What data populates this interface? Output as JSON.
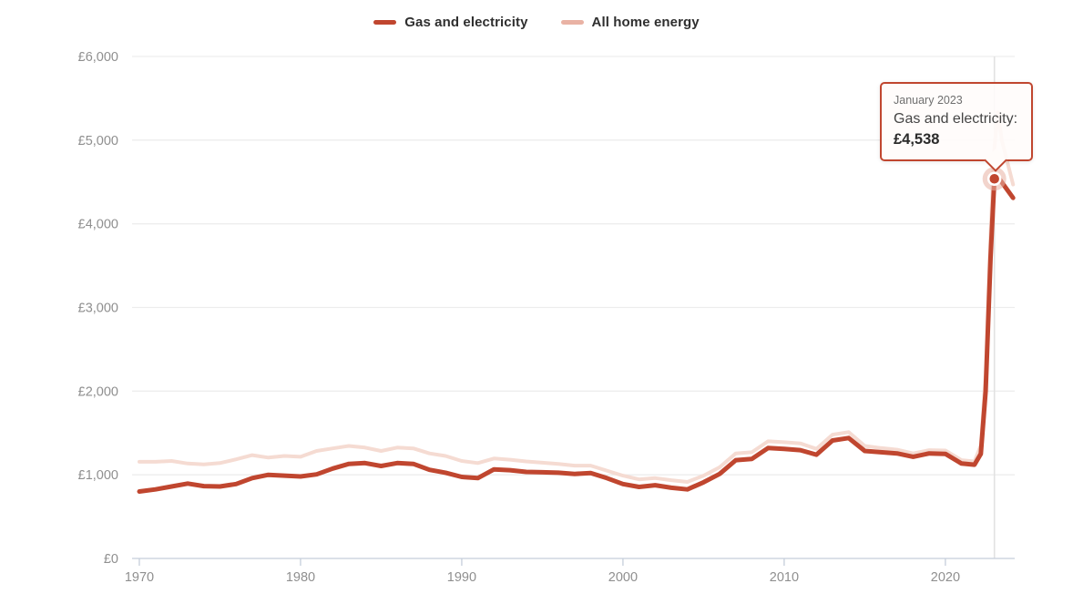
{
  "legend": {
    "items": [
      {
        "label": "Gas and electricity",
        "color": "#c0462f"
      },
      {
        "label": "All home energy",
        "color": "#e9b2a4"
      }
    ]
  },
  "tooltip": {
    "date": "January 2023",
    "series_label": "Gas and electricity:",
    "value": "£4,538"
  },
  "colors": {
    "gas_line": "#c0462f",
    "all_home_line": "#f5dbd2",
    "grid": "#ededed",
    "axis": "#c5cedb",
    "tick_label": "#8f8f8f",
    "crosshair": "#e2e2e2",
    "marker_fill": "#c0462f",
    "marker_ring": "#ffffff",
    "marker_halo": "rgba(231,176,163,0.55)"
  },
  "chart_data": {
    "type": "line",
    "title": "",
    "xlabel": "",
    "ylabel": "",
    "xlim": [
      1969.55,
      2024.3
    ],
    "ylim": [
      0,
      6000
    ],
    "grid": "horizontal",
    "legend_position": "top-center",
    "x_ticks": [
      {
        "value": 1970,
        "label": "1970"
      },
      {
        "value": 1980,
        "label": "1980"
      },
      {
        "value": 1990,
        "label": "1990"
      },
      {
        "value": 2000,
        "label": "2000"
      },
      {
        "value": 2010,
        "label": "2010"
      },
      {
        "value": 2020,
        "label": "2020"
      }
    ],
    "y_ticks": [
      {
        "value": 0,
        "label": "£0"
      },
      {
        "value": 1000,
        "label": "£1,000"
      },
      {
        "value": 2000,
        "label": "£2,000"
      },
      {
        "value": 3000,
        "label": "£3,000"
      },
      {
        "value": 4000,
        "label": "£4,000"
      },
      {
        "value": 5000,
        "label": "£5,000"
      },
      {
        "value": 6000,
        "label": "£6,000"
      }
    ],
    "series": [
      {
        "name": "All home energy",
        "line_width": 4,
        "points": [
          [
            1970,
            1155
          ],
          [
            1971,
            1155
          ],
          [
            1972,
            1165
          ],
          [
            1973,
            1135
          ],
          [
            1974,
            1125
          ],
          [
            1975,
            1140
          ],
          [
            1976,
            1185
          ],
          [
            1977,
            1235
          ],
          [
            1978,
            1205
          ],
          [
            1979,
            1225
          ],
          [
            1980,
            1215
          ],
          [
            1981,
            1285
          ],
          [
            1982,
            1315
          ],
          [
            1983,
            1345
          ],
          [
            1984,
            1325
          ],
          [
            1985,
            1285
          ],
          [
            1986,
            1325
          ],
          [
            1987,
            1315
          ],
          [
            1988,
            1255
          ],
          [
            1989,
            1225
          ],
          [
            1990,
            1165
          ],
          [
            1991,
            1140
          ],
          [
            1992,
            1195
          ],
          [
            1993,
            1180
          ],
          [
            1994,
            1160
          ],
          [
            1995,
            1145
          ],
          [
            1996,
            1130
          ],
          [
            1997,
            1110
          ],
          [
            1998,
            1110
          ],
          [
            1999,
            1050
          ],
          [
            2000,
            990
          ],
          [
            2001,
            945
          ],
          [
            2002,
            960
          ],
          [
            2003,
            935
          ],
          [
            2004,
            915
          ],
          [
            2005,
            990
          ],
          [
            2006,
            1090
          ],
          [
            2007,
            1255
          ],
          [
            2008,
            1270
          ],
          [
            2009,
            1400
          ],
          [
            2010,
            1390
          ],
          [
            2011,
            1375
          ],
          [
            2012,
            1310
          ],
          [
            2013,
            1480
          ],
          [
            2014,
            1510
          ],
          [
            2015,
            1345
          ],
          [
            2016,
            1320
          ],
          [
            2017,
            1300
          ],
          [
            2018,
            1255
          ],
          [
            2019,
            1295
          ],
          [
            2020,
            1290
          ],
          [
            2021,
            1175
          ],
          [
            2021.8,
            1160
          ],
          [
            2022.2,
            1350
          ],
          [
            2022.5,
            2200
          ],
          [
            2022.8,
            3900
          ],
          [
            2023.04,
            4900
          ],
          [
            2023.25,
            5330
          ],
          [
            2023.5,
            5000
          ],
          [
            2024.2,
            4470
          ]
        ]
      },
      {
        "name": "Gas and electricity",
        "line_width": 5,
        "points": [
          [
            1970,
            800
          ],
          [
            1971,
            825
          ],
          [
            1972,
            860
          ],
          [
            1973,
            895
          ],
          [
            1974,
            865
          ],
          [
            1975,
            860
          ],
          [
            1976,
            890
          ],
          [
            1977,
            960
          ],
          [
            1978,
            1000
          ],
          [
            1979,
            990
          ],
          [
            1980,
            980
          ],
          [
            1981,
            1005
          ],
          [
            1982,
            1075
          ],
          [
            1983,
            1130
          ],
          [
            1984,
            1140
          ],
          [
            1985,
            1105
          ],
          [
            1986,
            1140
          ],
          [
            1987,
            1130
          ],
          [
            1988,
            1060
          ],
          [
            1989,
            1025
          ],
          [
            1990,
            975
          ],
          [
            1991,
            960
          ],
          [
            1992,
            1065
          ],
          [
            1993,
            1055
          ],
          [
            1994,
            1035
          ],
          [
            1995,
            1030
          ],
          [
            1996,
            1025
          ],
          [
            1997,
            1010
          ],
          [
            1998,
            1020
          ],
          [
            1999,
            960
          ],
          [
            2000,
            890
          ],
          [
            2001,
            855
          ],
          [
            2002,
            875
          ],
          [
            2003,
            845
          ],
          [
            2004,
            825
          ],
          [
            2005,
            910
          ],
          [
            2006,
            1010
          ],
          [
            2007,
            1175
          ],
          [
            2008,
            1190
          ],
          [
            2009,
            1320
          ],
          [
            2010,
            1310
          ],
          [
            2011,
            1295
          ],
          [
            2012,
            1240
          ],
          [
            2013,
            1410
          ],
          [
            2014,
            1440
          ],
          [
            2015,
            1285
          ],
          [
            2016,
            1270
          ],
          [
            2017,
            1255
          ],
          [
            2018,
            1215
          ],
          [
            2019,
            1255
          ],
          [
            2020,
            1250
          ],
          [
            2021,
            1135
          ],
          [
            2021.8,
            1120
          ],
          [
            2022.2,
            1250
          ],
          [
            2022.5,
            2000
          ],
          [
            2022.8,
            3600
          ],
          [
            2023.04,
            4538
          ],
          [
            2023.15,
            4590
          ],
          [
            2024.2,
            4310
          ]
        ]
      }
    ],
    "highlight_point": {
      "series": "Gas and electricity",
      "x": 2023.04,
      "y": 4538,
      "date_label": "January 2023",
      "value_label": "£4,538"
    }
  }
}
